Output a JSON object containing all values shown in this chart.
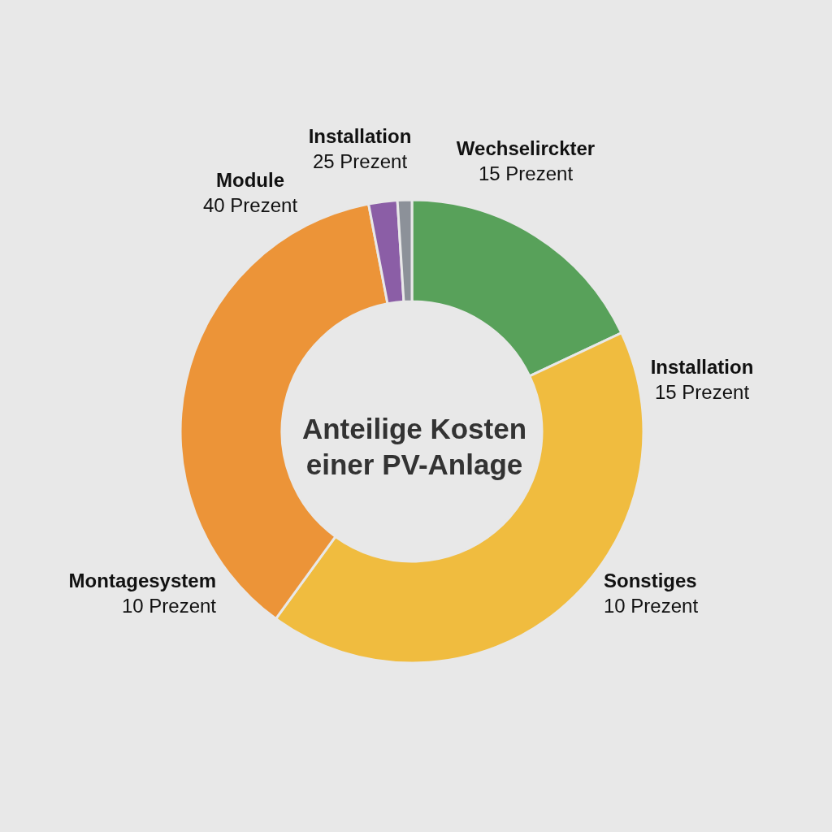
{
  "chart_data": {
    "type": "donut",
    "title": "Anteilige Kosten einer PV-Anlage",
    "categories": [
      null,
      null,
      null,
      null,
      null
    ],
    "values": [
      18,
      42,
      37,
      2,
      1
    ],
    "colors": [
      "#58a15a",
      "#f0bc3f",
      "#ec9438",
      "#8b5ea6",
      "#8c9199"
    ],
    "annotations": [
      "Installation 25 Prezent",
      "Wechselirckter 15 Prezent",
      "Module 40 Prezent",
      "Installation 15 Prezent",
      "Montagesystem 10 Prezent",
      "Sonstiges 10 Prezent"
    ]
  }
}
